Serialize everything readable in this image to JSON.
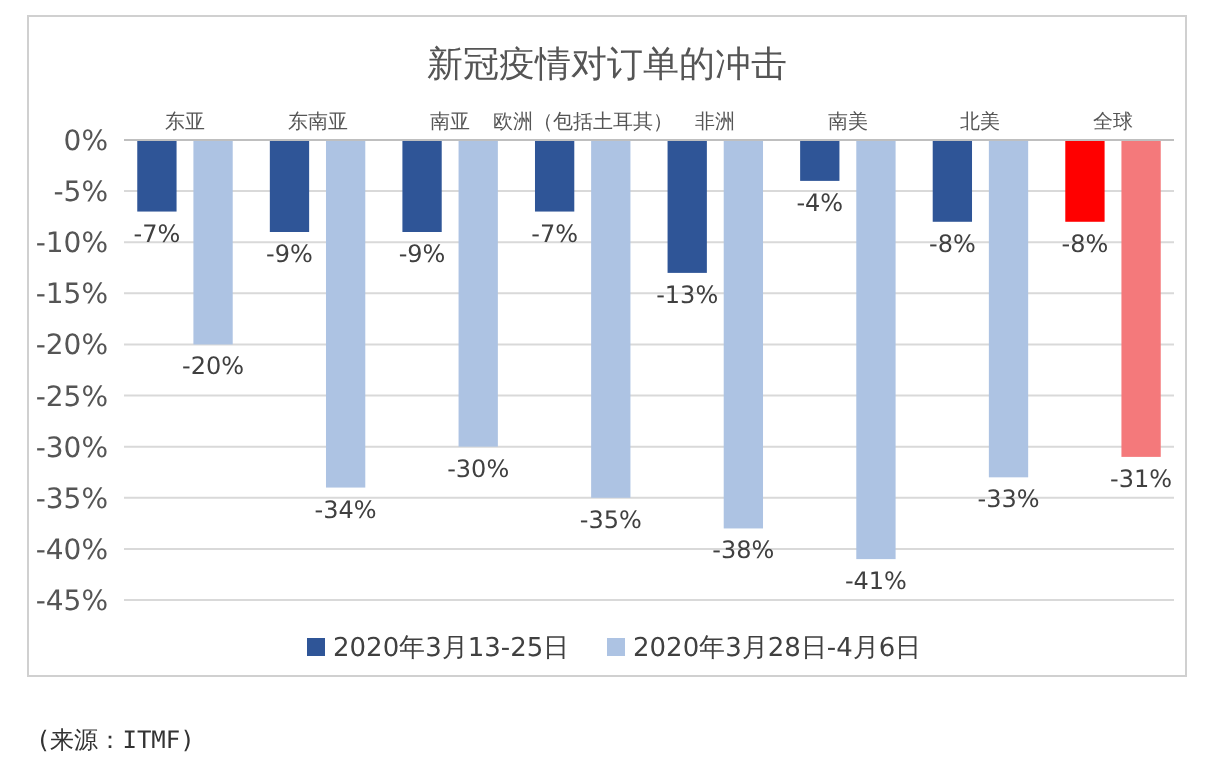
{
  "chart_data": {
    "type": "bar",
    "title": "新冠疫情对订单的冲击",
    "categories": [
      "东亚",
      "东南亚",
      "南亚",
      "欧洲（包括土耳其）",
      "非洲",
      "南美",
      "北美",
      "全球"
    ],
    "series": [
      {
        "name": "2020年3月13-25日",
        "color": "#2f5597",
        "colors": [
          "#2f5597",
          "#2f5597",
          "#2f5597",
          "#2f5597",
          "#2f5597",
          "#2f5597",
          "#2f5597",
          "#ff0000"
        ],
        "values": [
          -7,
          -9,
          -9,
          -7,
          -13,
          -4,
          -8,
          -8
        ],
        "value_labels": [
          "-7%",
          "-9%",
          "-9%",
          "-7%",
          "-13%",
          "-4%",
          "-8%",
          "-8%"
        ]
      },
      {
        "name": "2020年3月28日-4月6日",
        "color": "#adc3e3",
        "colors": [
          "#adc3e3",
          "#adc3e3",
          "#adc3e3",
          "#adc3e3",
          "#adc3e3",
          "#adc3e3",
          "#adc3e3",
          "#f4797b"
        ],
        "values": [
          -20,
          -34,
          -30,
          -35,
          -38,
          -41,
          -33,
          -31
        ],
        "value_labels": [
          "-20%",
          "-34%",
          "-30%",
          "-35%",
          "-38%",
          "-41%",
          "-33%",
          "-31%"
        ]
      }
    ],
    "ylim": [
      -45,
      0
    ],
    "yticks": [
      {
        "value": 0,
        "label": "0%"
      },
      {
        "value": -5,
        "label": "-5%"
      },
      {
        "value": -10,
        "label": "-10%"
      },
      {
        "value": -15,
        "label": "-15%"
      },
      {
        "value": -20,
        "label": "-20%"
      },
      {
        "value": -25,
        "label": "-25%"
      },
      {
        "value": -30,
        "label": "-30%"
      },
      {
        "value": -35,
        "label": "-35%"
      },
      {
        "value": -40,
        "label": "-40%"
      },
      {
        "value": -45,
        "label": "-45%"
      }
    ],
    "grid": "y",
    "legend": "bottom",
    "annotations": [
      "(来源：ITMF)"
    ]
  }
}
